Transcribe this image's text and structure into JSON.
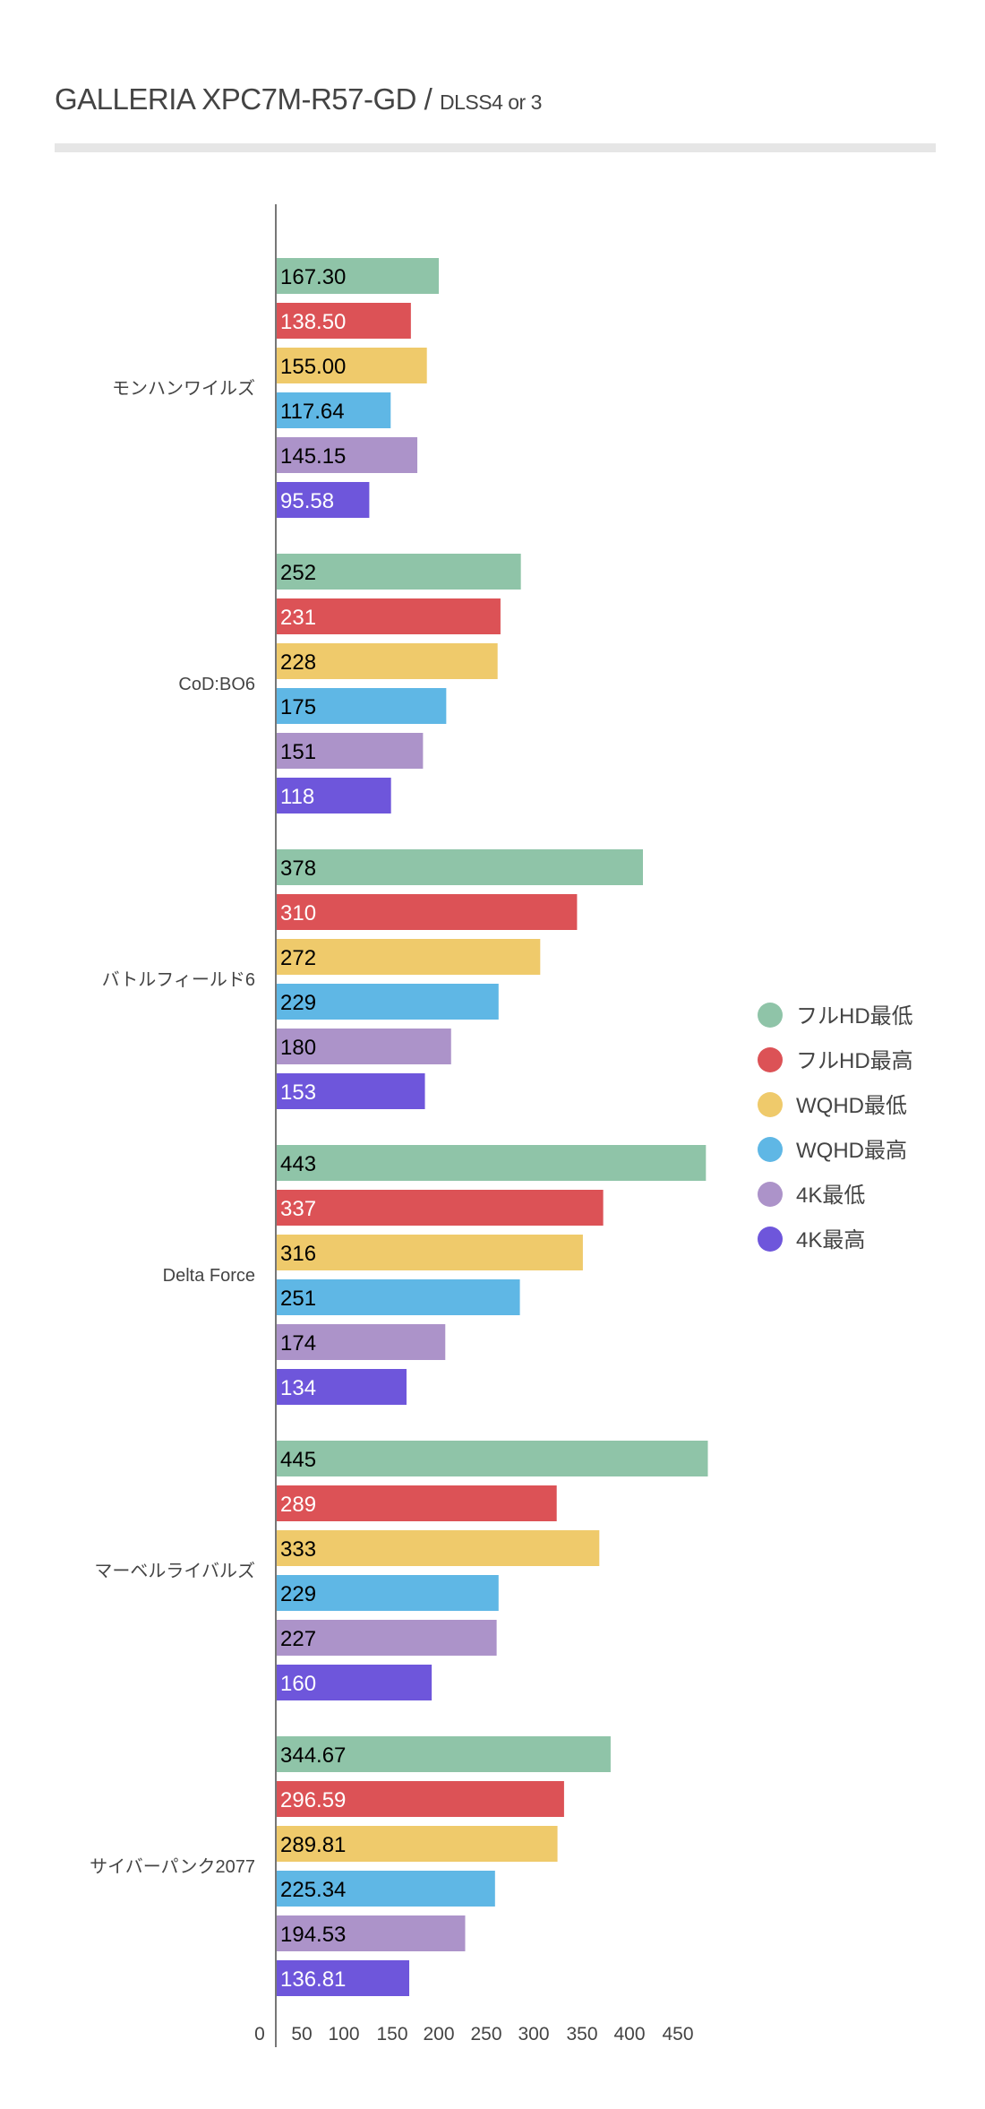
{
  "chart_data": {
    "type": "bar",
    "orientation": "horizontal",
    "title": "GALLERIA XPC7M-R57-GD",
    "subtitle": "DLSS4 or 3",
    "title_separator": "/",
    "xlabel": "",
    "ylabel": "",
    "xlim": [
      0,
      450
    ],
    "x_ticks": [
      "0",
      "50",
      "100",
      "150",
      "200",
      "250",
      "300",
      "350",
      "400",
      "450"
    ],
    "grid": false,
    "legend_position": "right",
    "categories": [
      "モンハンワイルズ",
      "CoD:BO6",
      "バトルフィールド6",
      "Delta Force",
      "マーベルライバルズ",
      "サイバーパンク2077"
    ],
    "series": [
      {
        "name": "フルHD最低",
        "color": "#8fc4a8",
        "label_color": "#000000",
        "values": [
          167.3,
          252,
          378,
          443,
          445,
          344.67
        ],
        "labels": [
          "167.30",
          "252",
          "378",
          "443",
          "445",
          "344.67"
        ]
      },
      {
        "name": "フルHD最高",
        "color": "#dc5256",
        "label_color": "#ffffff",
        "values": [
          138.5,
          231,
          310,
          337,
          289,
          296.59
        ],
        "labels": [
          "138.50",
          "231",
          "310",
          "337",
          "289",
          "296.59"
        ]
      },
      {
        "name": "WQHD最低",
        "color": "#efca6b",
        "label_color": "#000000",
        "values": [
          155.0,
          228,
          272,
          316,
          333,
          289.81
        ],
        "labels": [
          "155.00",
          "228",
          "272",
          "316",
          "333",
          "289.81"
        ]
      },
      {
        "name": "WQHD最高",
        "color": "#5fb7e5",
        "label_color": "#000000",
        "values": [
          117.64,
          175,
          229,
          251,
          229,
          225.34
        ],
        "labels": [
          "117.64",
          "175",
          "229",
          "251",
          "229",
          "225.34"
        ]
      },
      {
        "name": "4K最低",
        "color": "#ac93c9",
        "label_color": "#000000",
        "values": [
          145.15,
          151,
          180,
          174,
          227,
          194.53
        ],
        "labels": [
          "145.15",
          "151",
          "180",
          "174",
          "227",
          "194.53"
        ]
      },
      {
        "name": "4K最高",
        "color": "#6e56db",
        "label_color": "#ffffff",
        "values": [
          95.58,
          118,
          153,
          134,
          160,
          136.81
        ],
        "labels": [
          "95.58",
          "118",
          "153",
          "134",
          "160",
          "136.81"
        ]
      }
    ]
  }
}
